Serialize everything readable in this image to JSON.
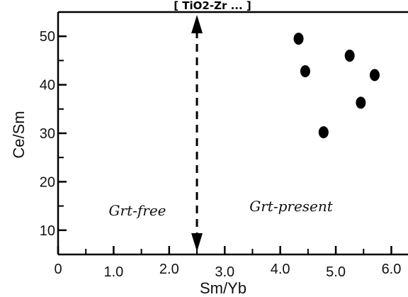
{
  "header": {
    "text": "[ TiO2-Zr ... ]"
  },
  "chart_data": {
    "type": "scatter",
    "title": "",
    "xlabel": "Sm/Yb",
    "ylabel": "Ce/Sm",
    "xlim": [
      0,
      6.3
    ],
    "ylim": [
      5,
      55
    ],
    "x_ticks": [
      "0",
      "1.0",
      "2.0",
      "3.0",
      "4.0",
      "5.0",
      "6.0"
    ],
    "y_ticks": [
      "10",
      "20",
      "30",
      "40",
      "50"
    ],
    "grid": false,
    "series": [
      {
        "marker": "filled-circle",
        "color": "#000000",
        "points": [
          {
            "x": 4.33,
            "y": 49.5
          },
          {
            "x": 4.45,
            "y": 42.8
          },
          {
            "x": 5.25,
            "y": 46.0
          },
          {
            "x": 5.7,
            "y": 42.0
          },
          {
            "x": 5.45,
            "y": 36.3
          },
          {
            "x": 4.78,
            "y": 30.2
          }
        ]
      }
    ],
    "annotations": {
      "divider_x": 2.5,
      "left_label": "Grt-free",
      "right_label": "Grt-present"
    }
  }
}
